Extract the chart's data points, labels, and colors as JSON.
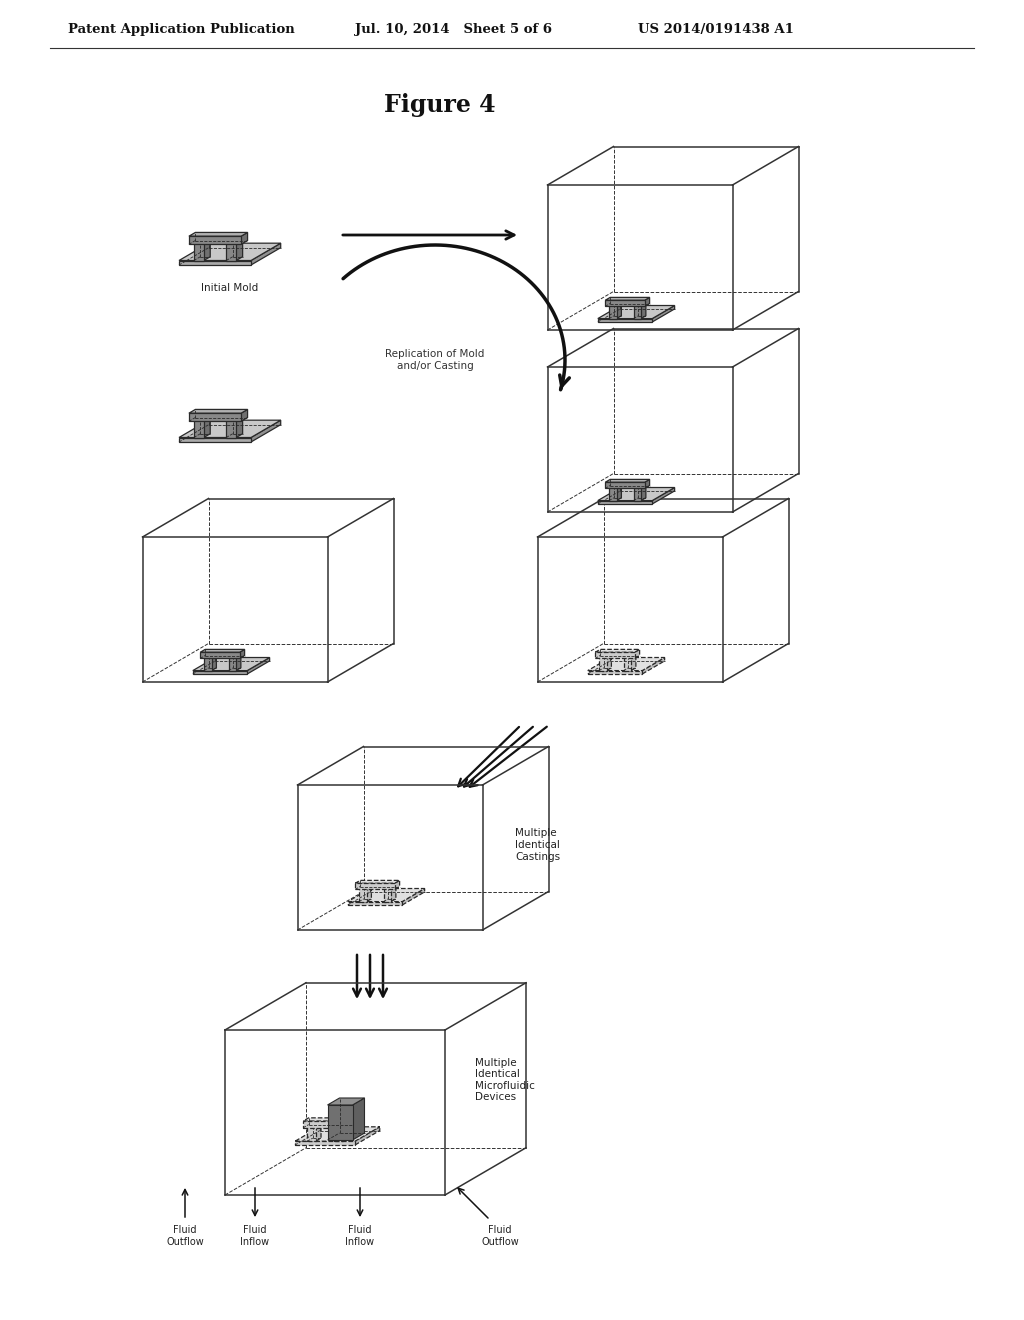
{
  "title": "Figure 4",
  "header_left": "Patent Application Publication",
  "header_mid": "Jul. 10, 2014   Sheet 5 of 6",
  "header_right": "US 2014/0191438 A1",
  "background_color": "#ffffff",
  "label_initial_mold": "Initial Mold",
  "label_replication": "Replication of Mold\nand/or Casting",
  "label_multiple_castings": "Multiple\nIdentical\nCastings",
  "label_multiple_devices": "Multiple\nIdentical\nMicrofluidic\nDevices",
  "label_fluid_outflow_left": "Fluid\nOutflow",
  "label_fluid_inflow_left": "Fluid\nInflow",
  "label_fluid_inflow_right": "Fluid\nInflow",
  "label_fluid_outflow_right": "Fluid\nOutflow",
  "edge_color": "#2a2a2a",
  "mold_top": "#b0b0b0",
  "mold_front": "#888888",
  "mold_side": "#707070",
  "plate_top": "#c8c8c8",
  "plate_front": "#aaaaaa",
  "plate_side": "#909090",
  "dashed_fill_top": "#e0e0e0",
  "dashed_fill_front": "#cccccc",
  "dashed_fill_side": "#bbbbbb"
}
